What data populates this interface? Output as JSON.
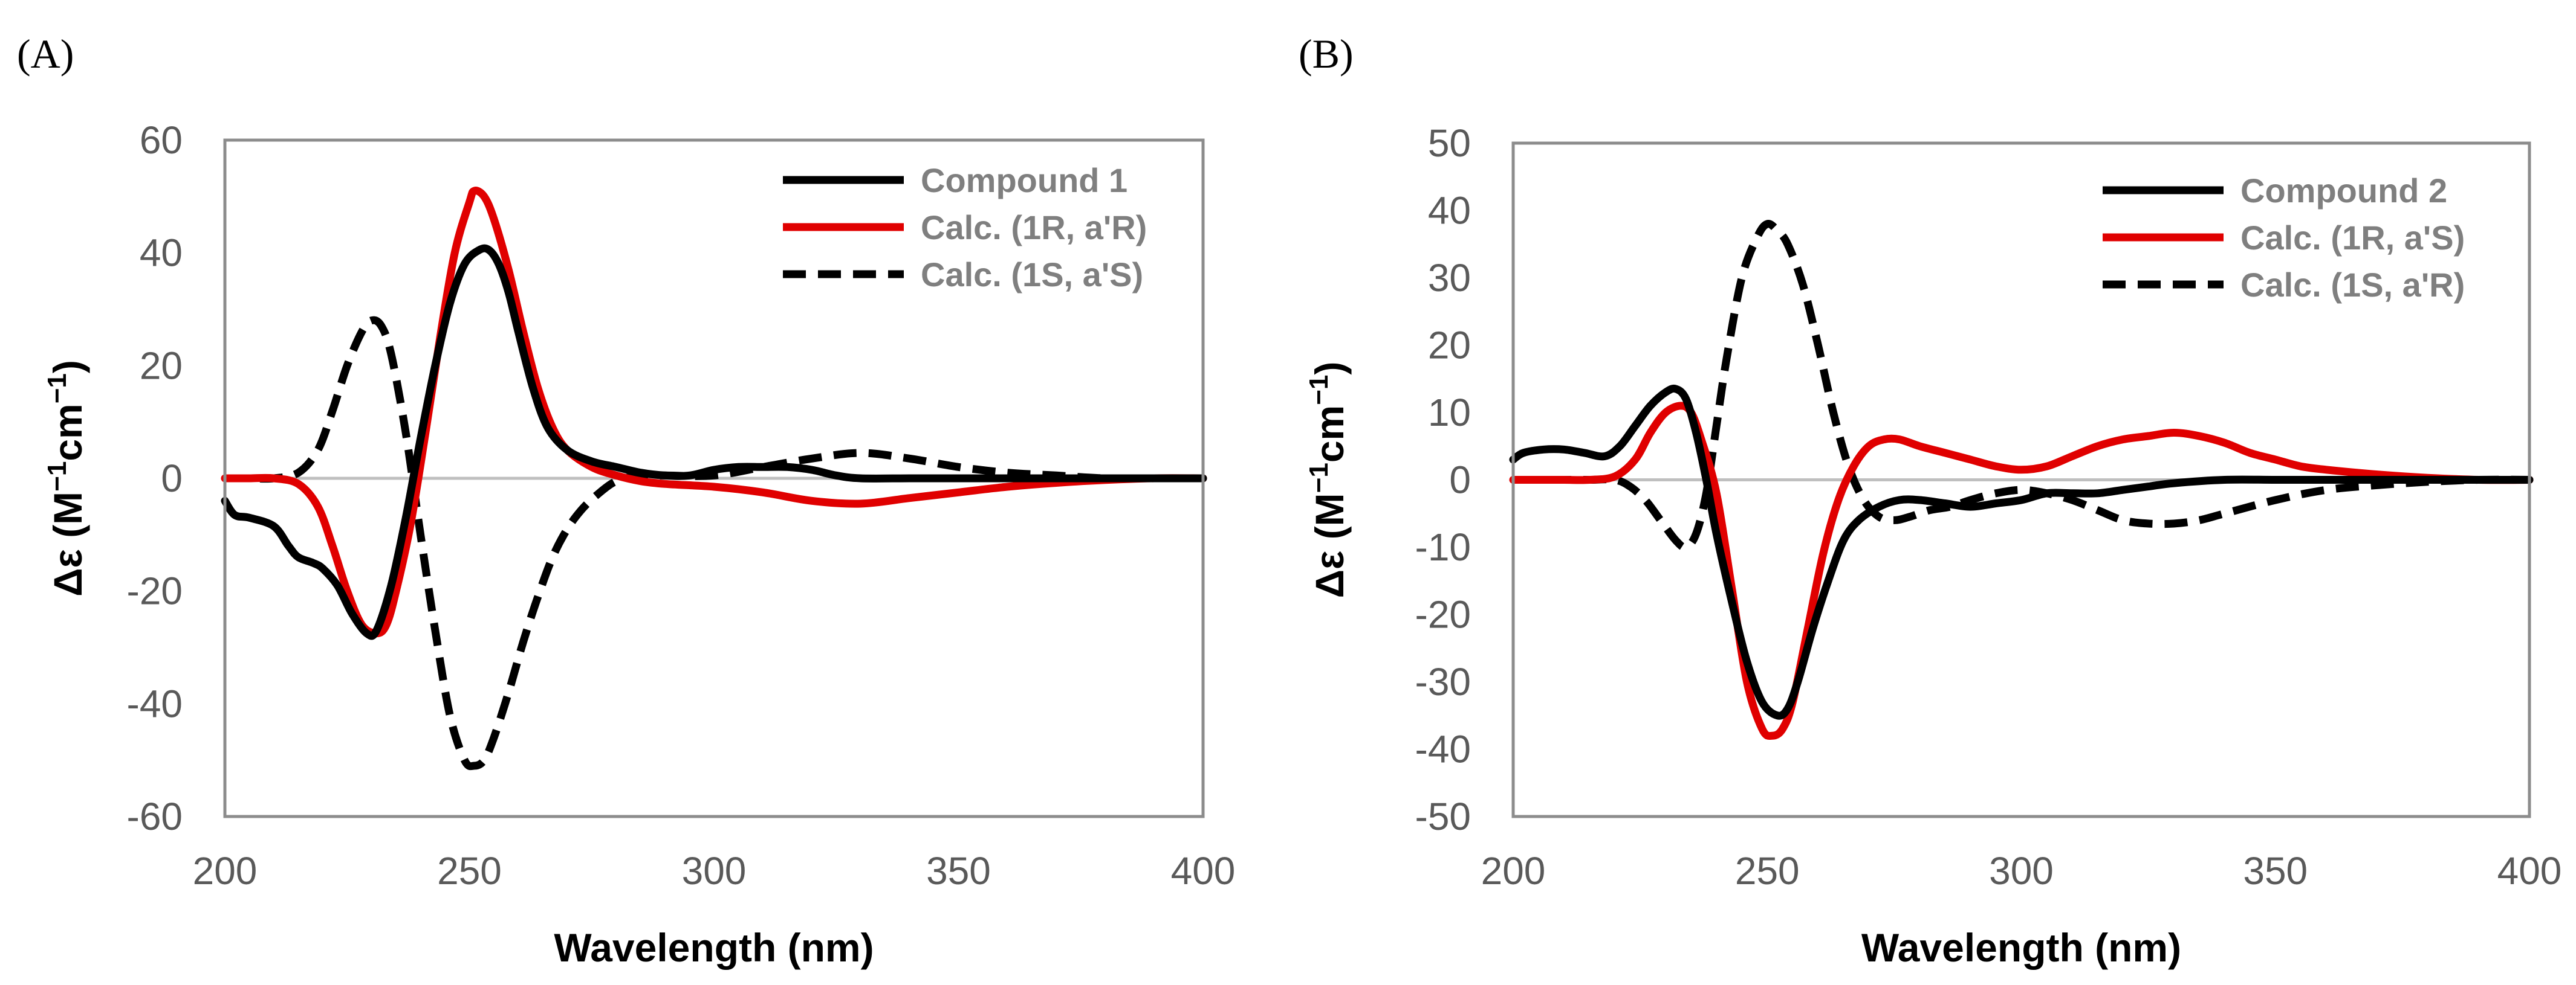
{
  "chart_data": [
    {
      "type": "line",
      "panel_label": "(A)",
      "xlabel": "Wavelength (nm)",
      "ylabel": "Δε (M",
      "ylabel_parts": [
        "M",
        "−1",
        "cm",
        "−1",
        ")"
      ],
      "xlim": [
        200,
        400
      ],
      "ylim": [
        -60,
        60
      ],
      "xticks": [
        200,
        250,
        300,
        350,
        400
      ],
      "yticks": [
        60,
        40,
        20,
        0,
        -20,
        -40,
        -60
      ],
      "legend_position": "top-right",
      "series": [
        {
          "name": "Compound 1",
          "color": "#000000",
          "style": "solid",
          "x": [
            200,
            202,
            205,
            210,
            213,
            215,
            218,
            220,
            223,
            226,
            229,
            231,
            234,
            237,
            240,
            243,
            246,
            249,
            252,
            254,
            256,
            258,
            260,
            263,
            266,
            270,
            275,
            280,
            285,
            290,
            295,
            300,
            305,
            310,
            315,
            320,
            325,
            330,
            340,
            350,
            360,
            370,
            380,
            390,
            400
          ],
          "values": [
            -4,
            -6.5,
            -7,
            -8.5,
            -12,
            -14,
            -15,
            -16,
            -19,
            -24,
            -27.5,
            -27,
            -19,
            -7,
            7,
            20,
            31,
            38,
            40.5,
            40.5,
            38,
            33,
            26,
            16,
            9,
            5,
            3,
            2,
            1,
            0.5,
            0.5,
            1.5,
            2,
            2,
            2,
            1.5,
            0.5,
            0,
            0,
            0,
            0,
            0,
            0,
            0,
            0
          ]
        },
        {
          "name": "Calc. (1R, a'R)",
          "color": "#e00000",
          "style": "solid",
          "x": [
            200,
            205,
            210,
            215,
            219,
            222,
            225,
            228,
            231,
            233,
            235,
            238,
            241,
            244,
            247,
            250,
            251,
            253,
            255,
            258,
            261,
            264,
            267,
            270,
            275,
            280,
            285,
            290,
            300,
            310,
            320,
            330,
            340,
            350,
            360,
            370,
            380,
            390,
            400
          ],
          "values": [
            0,
            0,
            0,
            -1,
            -5,
            -12,
            -20,
            -26,
            -27.5,
            -26,
            -20,
            -8,
            8,
            25,
            40,
            49,
            51,
            50,
            46,
            37,
            26,
            16,
            9,
            5,
            2,
            0.5,
            -0.5,
            -1,
            -1.5,
            -2.5,
            -4,
            -4.5,
            -3.5,
            -2.5,
            -1.5,
            -0.8,
            -0.3,
            0,
            0
          ]
        },
        {
          "name": "Calc. (1S, a'S)",
          "color": "#000000",
          "style": "dashed",
          "x": [
            200,
            205,
            210,
            215,
            219,
            222,
            225,
            228,
            230,
            232,
            234,
            237,
            240,
            243,
            246,
            249,
            251,
            253,
            255,
            258,
            261,
            264,
            267,
            270,
            273,
            276,
            280,
            285,
            290,
            300,
            310,
            320,
            330,
            340,
            350,
            360,
            370,
            380,
            390,
            400
          ],
          "values": [
            0,
            0,
            0,
            1,
            5,
            12,
            20,
            26,
            28,
            27,
            22,
            8,
            -10,
            -27,
            -42,
            -50,
            -51,
            -50,
            -46,
            -38,
            -29,
            -21,
            -14,
            -9,
            -5.5,
            -3,
            -0.5,
            0.5,
            0.5,
            0.5,
            2,
            3.5,
            4.5,
            3.5,
            2,
            1,
            0.5,
            0,
            0,
            0
          ]
        }
      ]
    },
    {
      "type": "line",
      "panel_label": "(B)",
      "xlabel": "Wavelength (nm)",
      "ylabel": "Δε (M",
      "ylabel_parts": [
        "M",
        "−1",
        "cm",
        "−1",
        ")"
      ],
      "xlim": [
        200,
        400
      ],
      "ylim": [
        -50,
        50
      ],
      "xticks": [
        200,
        250,
        300,
        350,
        400
      ],
      "yticks": [
        50,
        40,
        30,
        20,
        10,
        0,
        -10,
        -20,
        -30,
        -40,
        -50
      ],
      "legend_position": "top-right",
      "series": [
        {
          "name": "Compound 2",
          "color": "#000000",
          "style": "solid",
          "x": [
            200,
            202,
            206,
            210,
            214,
            218,
            221,
            224,
            227,
            230,
            232,
            234,
            236,
            238,
            240,
            243,
            246,
            249,
            252,
            254,
            256,
            259,
            262,
            265,
            268,
            272,
            276,
            280,
            285,
            290,
            295,
            300,
            305,
            310,
            315,
            320,
            325,
            330,
            340,
            350,
            360,
            370,
            380,
            390,
            400
          ],
          "values": [
            3,
            4,
            4.5,
            4.5,
            4,
            3.5,
            5,
            8,
            11,
            13,
            13.5,
            12,
            7,
            0,
            -8,
            -18,
            -27,
            -33,
            -35,
            -34,
            -30,
            -22,
            -15,
            -9,
            -6,
            -4,
            -3,
            -3,
            -3.5,
            -4,
            -3.5,
            -3,
            -2,
            -2,
            -2,
            -1.5,
            -1,
            -0.5,
            0,
            0,
            0,
            0,
            0,
            0,
            0
          ]
        },
        {
          "name": "Calc. (1R, a'S)",
          "color": "#e00000",
          "style": "solid",
          "x": [
            200,
            205,
            210,
            215,
            220,
            224,
            227,
            230,
            233,
            235,
            237,
            240,
            243,
            246,
            249,
            251,
            253,
            255,
            258,
            261,
            264,
            267,
            270,
            273,
            276,
            280,
            285,
            290,
            295,
            300,
            305,
            310,
            315,
            320,
            325,
            330,
            335,
            340,
            345,
            350,
            355,
            360,
            370,
            380,
            390,
            400
          ],
          "values": [
            0,
            0,
            0,
            0,
            0.5,
            3,
            7,
            10,
            11,
            10,
            6,
            -2,
            -16,
            -30,
            -37,
            -38,
            -37,
            -33,
            -22,
            -11,
            -3,
            2,
            5,
            6,
            6,
            5,
            4,
            3,
            2,
            1.5,
            2,
            3.5,
            5,
            6,
            6.5,
            7,
            6.5,
            5.5,
            4,
            3,
            2,
            1.5,
            0.8,
            0.3,
            0,
            0
          ]
        },
        {
          "name": "Calc. (1S, a'R)",
          "color": "#000000",
          "style": "dashed",
          "x": [
            200,
            205,
            210,
            215,
            220,
            223,
            226,
            229,
            232,
            234,
            236,
            238,
            240,
            242,
            245,
            248,
            250,
            252,
            254,
            257,
            260,
            263,
            266,
            269,
            272,
            275,
            278,
            282,
            286,
            290,
            295,
            300,
            305,
            310,
            315,
            320,
            325,
            330,
            335,
            340,
            350,
            360,
            370,
            380,
            390,
            400
          ],
          "values": [
            0,
            0,
            0,
            0,
            0,
            -1,
            -3,
            -6,
            -9,
            -10,
            -8,
            -2,
            8,
            18,
            30,
            36,
            38,
            37,
            35,
            29,
            20,
            10,
            2,
            -3,
            -5.5,
            -6,
            -5.5,
            -4.5,
            -4,
            -3,
            -2,
            -1.5,
            -2,
            -3,
            -4.5,
            -6,
            -6.5,
            -6.5,
            -6,
            -5,
            -3,
            -1.5,
            -0.8,
            -0.3,
            0,
            0
          ]
        }
      ]
    }
  ]
}
